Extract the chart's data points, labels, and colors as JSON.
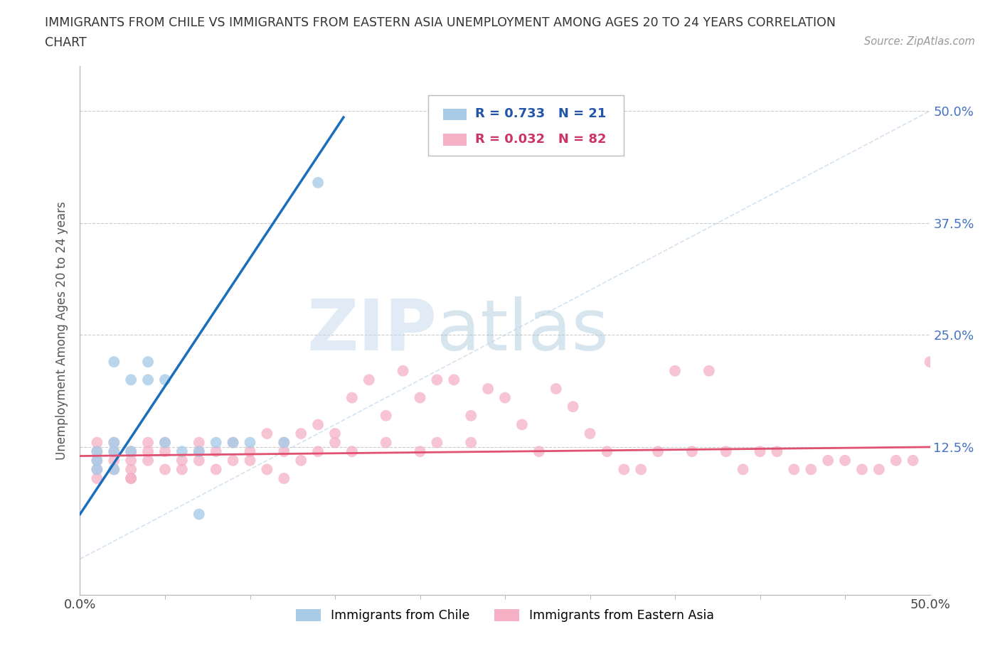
{
  "title_line1": "IMMIGRANTS FROM CHILE VS IMMIGRANTS FROM EASTERN ASIA UNEMPLOYMENT AMONG AGES 20 TO 24 YEARS CORRELATION",
  "title_line2": "CHART",
  "source_text": "Source: ZipAtlas.com",
  "ylabel": "Unemployment Among Ages 20 to 24 years",
  "xlim": [
    0.0,
    0.5
  ],
  "ylim": [
    -0.04,
    0.55
  ],
  "ytick_positions": [
    0.125,
    0.25,
    0.375,
    0.5
  ],
  "watermark_zip": "ZIP",
  "watermark_atlas": "atlas",
  "legend_label_1": "Immigrants from Chile",
  "legend_label_2": "Immigrants from Eastern Asia",
  "R1": 0.733,
  "N1": 21,
  "R2": 0.032,
  "N2": 82,
  "color_chile": "#a8cce8",
  "color_eastern_asia": "#f5b0c5",
  "color_chile_line": "#1a6fbd",
  "color_eastern_asia_line": "#e05070",
  "color_diag": "#b8d0e8",
  "chile_x": [
    0.01,
    0.01,
    0.01,
    0.02,
    0.02,
    0.02,
    0.02,
    0.03,
    0.03,
    0.04,
    0.04,
    0.05,
    0.05,
    0.06,
    0.07,
    0.08,
    0.09,
    0.1,
    0.12,
    0.14,
    0.07
  ],
  "chile_y": [
    0.1,
    0.11,
    0.12,
    0.1,
    0.12,
    0.13,
    0.22,
    0.12,
    0.2,
    0.2,
    0.22,
    0.13,
    0.2,
    0.12,
    0.12,
    0.13,
    0.13,
    0.13,
    0.13,
    0.42,
    0.05
  ],
  "eastern_asia_x": [
    0.01,
    0.01,
    0.01,
    0.01,
    0.01,
    0.02,
    0.02,
    0.02,
    0.02,
    0.03,
    0.03,
    0.03,
    0.03,
    0.04,
    0.04,
    0.04,
    0.05,
    0.05,
    0.05,
    0.06,
    0.06,
    0.07,
    0.07,
    0.07,
    0.08,
    0.08,
    0.09,
    0.09,
    0.1,
    0.1,
    0.11,
    0.11,
    0.12,
    0.12,
    0.13,
    0.13,
    0.14,
    0.14,
    0.15,
    0.15,
    0.16,
    0.16,
    0.17,
    0.18,
    0.18,
    0.19,
    0.2,
    0.2,
    0.21,
    0.21,
    0.22,
    0.23,
    0.23,
    0.24,
    0.25,
    0.26,
    0.27,
    0.28,
    0.29,
    0.3,
    0.31,
    0.32,
    0.33,
    0.34,
    0.35,
    0.36,
    0.37,
    0.38,
    0.39,
    0.4,
    0.41,
    0.42,
    0.43,
    0.44,
    0.45,
    0.46,
    0.47,
    0.48,
    0.49,
    0.5,
    0.03,
    0.12
  ],
  "eastern_asia_y": [
    0.11,
    0.12,
    0.1,
    0.13,
    0.09,
    0.12,
    0.1,
    0.11,
    0.13,
    0.12,
    0.09,
    0.11,
    0.1,
    0.12,
    0.11,
    0.13,
    0.1,
    0.12,
    0.13,
    0.11,
    0.1,
    0.12,
    0.13,
    0.11,
    0.12,
    0.1,
    0.13,
    0.11,
    0.12,
    0.11,
    0.14,
    0.1,
    0.12,
    0.13,
    0.14,
    0.11,
    0.15,
    0.12,
    0.14,
    0.13,
    0.18,
    0.12,
    0.2,
    0.16,
    0.13,
    0.21,
    0.18,
    0.12,
    0.2,
    0.13,
    0.2,
    0.16,
    0.13,
    0.19,
    0.18,
    0.15,
    0.12,
    0.19,
    0.17,
    0.14,
    0.12,
    0.1,
    0.1,
    0.12,
    0.21,
    0.12,
    0.21,
    0.12,
    0.1,
    0.12,
    0.12,
    0.1,
    0.1,
    0.11,
    0.11,
    0.1,
    0.1,
    0.11,
    0.11,
    0.22,
    0.09,
    0.09
  ]
}
